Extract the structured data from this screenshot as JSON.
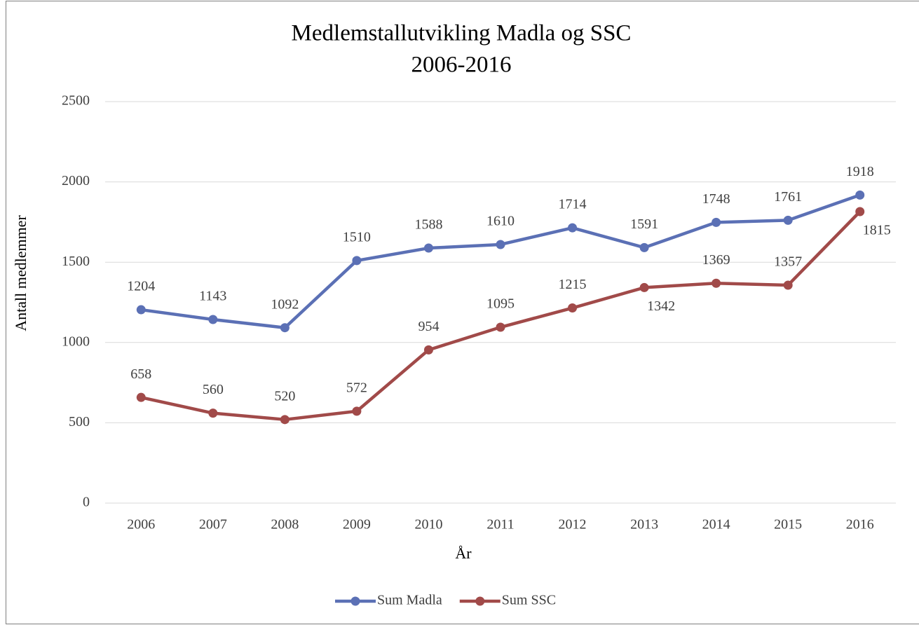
{
  "chart_data": {
    "type": "line",
    "title": "Medlemstallutvikling Madla og SSC",
    "subtitle": "2006-2016",
    "xlabel": "År",
    "ylabel": "Antall medlemmer",
    "categories": [
      "2006",
      "2007",
      "2008",
      "2009",
      "2010",
      "2011",
      "2012",
      "2013",
      "2014",
      "2015",
      "2016"
    ],
    "series": [
      {
        "name": "Sum Madla",
        "color": "#5b70b5",
        "values": [
          1204,
          1143,
          1092,
          1510,
          1588,
          1610,
          1714,
          1591,
          1748,
          1761,
          1918
        ]
      },
      {
        "name": "Sum SSC",
        "color": "#a14a49",
        "values": [
          658,
          560,
          520,
          572,
          954,
          1095,
          1215,
          1342,
          1369,
          1357,
          1815
        ]
      }
    ],
    "ylim": [
      0,
      2500
    ],
    "yticks": [
      0,
      500,
      1000,
      1500,
      2000,
      2500
    ],
    "grid": true,
    "legend": "bottom"
  }
}
